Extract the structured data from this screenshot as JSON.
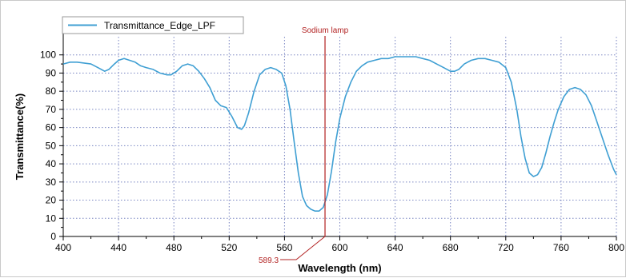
{
  "chart_data": {
    "type": "line",
    "title": "",
    "xlabel": "Wavelength (nm)",
    "ylabel": "Transmittance(%)",
    "xlim": [
      400,
      800
    ],
    "ylim": [
      0,
      110
    ],
    "x_ticks": [
      400,
      440,
      480,
      520,
      560,
      600,
      640,
      680,
      720,
      760,
      800
    ],
    "x_tick_labels": [
      "400",
      "440",
      "480",
      "520",
      "560",
      "600",
      "640",
      "680",
      "720",
      "760",
      "800"
    ],
    "y_ticks": [
      0,
      10,
      20,
      30,
      40,
      50,
      60,
      70,
      80,
      90,
      100
    ],
    "y_tick_labels": [
      "0",
      "10",
      "20",
      "30",
      "40",
      "50",
      "60",
      "70",
      "80",
      "90",
      "100"
    ],
    "grid": true,
    "legend": "top-left",
    "series": [
      {
        "name": "Transmittance_Edge_LPF",
        "color": "#3f9fd3",
        "x": [
          400,
          405,
          410,
          420,
          425,
          430,
          433,
          437,
          440,
          444,
          448,
          452,
          456,
          460,
          465,
          470,
          475,
          478,
          482,
          486,
          490,
          494,
          498,
          502,
          506,
          510,
          514,
          518,
          522,
          526,
          529,
          531,
          534,
          538,
          542,
          546,
          550,
          554,
          558,
          561,
          564,
          567,
          570,
          573,
          576,
          579,
          582,
          585,
          588,
          591,
          594,
          597,
          600,
          604,
          608,
          612,
          616,
          620,
          625,
          630,
          635,
          640,
          645,
          650,
          655,
          660,
          665,
          670,
          675,
          680,
          683,
          686,
          690,
          695,
          700,
          705,
          710,
          715,
          720,
          724,
          728,
          731,
          734,
          737,
          740,
          743,
          746,
          749,
          752,
          755,
          758,
          762,
          766,
          770,
          774,
          778,
          782,
          786,
          790,
          794,
          798,
          800
        ],
        "y": [
          95,
          96,
          96,
          95,
          93,
          91,
          92,
          95,
          97,
          98,
          97,
          96,
          94,
          93,
          92,
          90,
          89,
          89,
          91,
          94,
          95,
          94,
          91,
          87,
          82,
          75,
          72,
          71,
          66,
          60,
          59,
          61,
          68,
          80,
          89,
          92,
          93,
          92,
          90,
          83,
          70,
          52,
          35,
          22,
          17,
          15,
          14,
          14,
          16,
          23,
          36,
          52,
          65,
          77,
          85,
          91,
          94,
          96,
          97,
          98,
          98,
          99,
          99,
          99,
          99,
          98,
          97,
          95,
          93,
          91,
          91,
          92,
          95,
          97,
          98,
          98,
          97,
          96,
          93,
          85,
          70,
          55,
          43,
          35,
          33,
          34,
          38,
          46,
          55,
          63,
          70,
          77,
          81,
          82,
          81,
          78,
          72,
          63,
          54,
          45,
          37,
          34
        ]
      }
    ],
    "annotations": [
      {
        "text": "Sodium lamp",
        "x": 589.3,
        "color": "#b22222"
      },
      {
        "text": "589.3",
        "x": 589.3,
        "color": "#b22222"
      }
    ]
  }
}
